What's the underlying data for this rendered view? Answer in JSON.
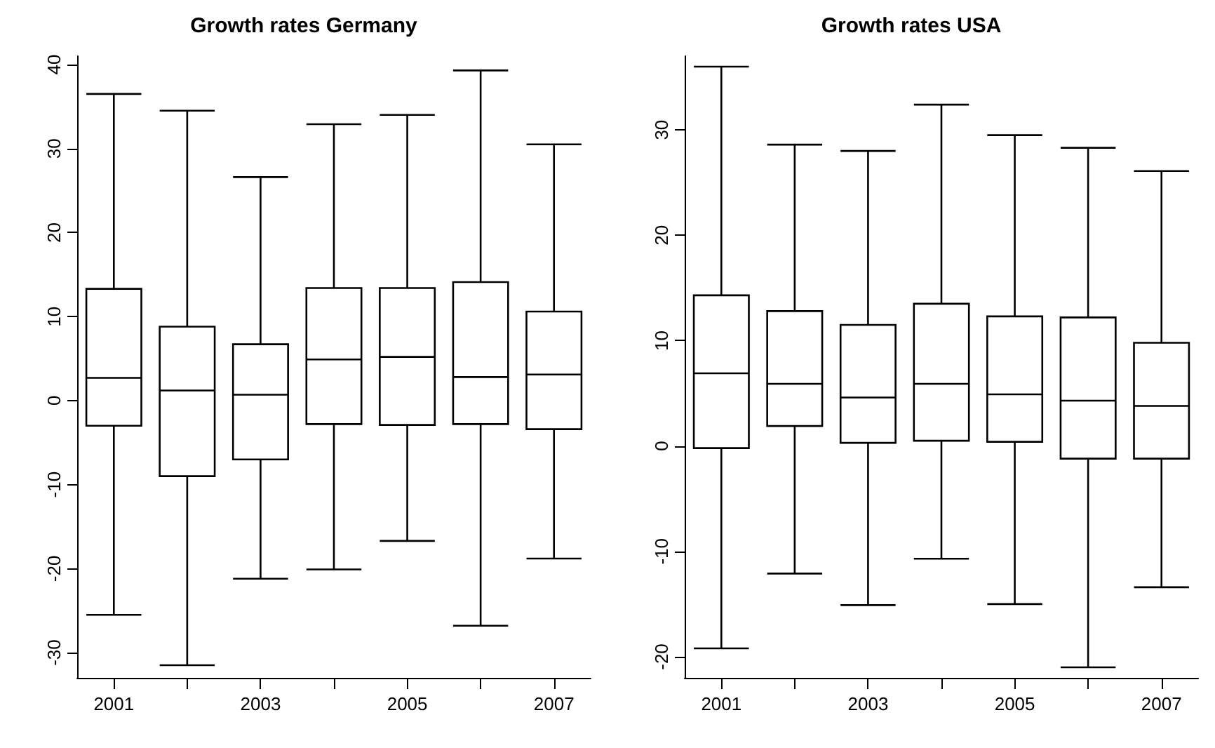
{
  "chart_data": [
    {
      "type": "box",
      "title": "Growth rates Germany",
      "categories": [
        "2001",
        null,
        "2003",
        null,
        "2005",
        null,
        "2007"
      ],
      "ylim": [
        -33,
        41
      ],
      "yticks": [
        -30,
        -20,
        -10,
        0,
        10,
        20,
        30,
        40
      ],
      "grid": false,
      "boxes": [
        {
          "low": -25.5,
          "q1": -3,
          "median": 2.7,
          "q3": 13.3,
          "high": 36.5
        },
        {
          "low": -31.5,
          "q1": -9,
          "median": 1.2,
          "q3": 8.8,
          "high": 34.5
        },
        {
          "low": -21.2,
          "q1": -7,
          "median": 0.7,
          "q3": 6.7,
          "high": 26.6
        },
        {
          "low": -20.1,
          "q1": -2.8,
          "median": 4.9,
          "q3": 13.4,
          "high": 32.9
        },
        {
          "low": -16.7,
          "q1": -2.9,
          "median": 5.2,
          "q3": 13.4,
          "high": 34
        },
        {
          "low": -26.8,
          "q1": -2.8,
          "median": 2.8,
          "q3": 14.1,
          "high": 39.3
        },
        {
          "low": -18.8,
          "q1": -3.4,
          "median": 3.1,
          "q3": 10.6,
          "high": 30.5
        }
      ]
    },
    {
      "type": "box",
      "title": "Growth rates USA",
      "categories": [
        "2001",
        null,
        "2003",
        null,
        "2005",
        null,
        "2007"
      ],
      "ylim": [
        -22,
        37
      ],
      "yticks": [
        -20,
        -10,
        0,
        10,
        20,
        30
      ],
      "grid": false,
      "boxes": [
        {
          "low": -19.2,
          "q1": -0.2,
          "median": 6.9,
          "q3": 14.3,
          "high": 36
        },
        {
          "low": -12.1,
          "q1": 1.9,
          "median": 5.9,
          "q3": 12.8,
          "high": 28.6
        },
        {
          "low": -15.1,
          "q1": 0.3,
          "median": 4.6,
          "q3": 11.5,
          "high": 28
        },
        {
          "low": -10.7,
          "q1": 0.5,
          "median": 5.9,
          "q3": 13.5,
          "high": 32.4
        },
        {
          "low": -15,
          "q1": 0.4,
          "median": 4.9,
          "q3": 12.3,
          "high": 29.5
        },
        {
          "low": -21,
          "q1": -1.2,
          "median": 4.3,
          "q3": 12.2,
          "high": 28.3
        },
        {
          "low": -13.4,
          "q1": -1.2,
          "median": 3.8,
          "q3": 9.8,
          "high": 26.1
        }
      ]
    }
  ]
}
